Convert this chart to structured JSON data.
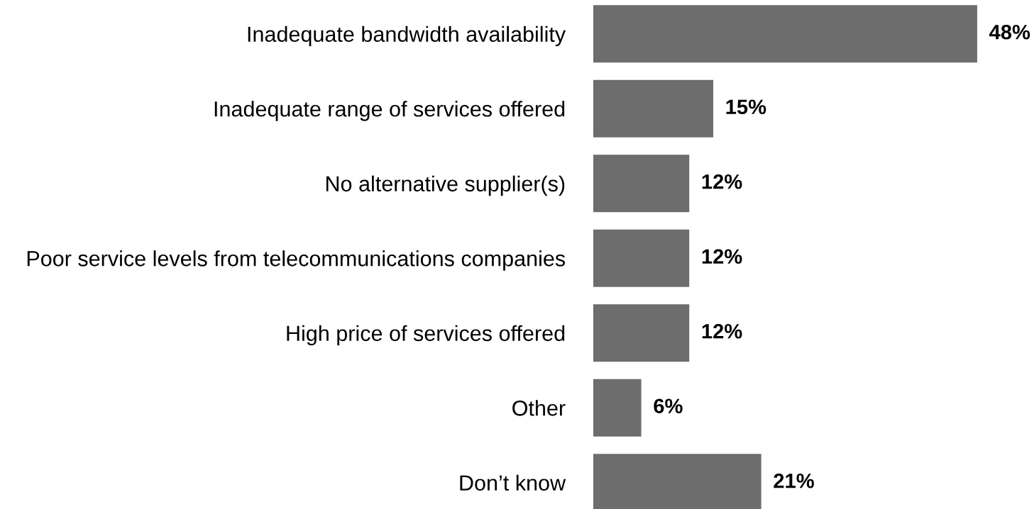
{
  "chart_data": {
    "type": "bar",
    "orientation": "horizontal",
    "categories": [
      "Inadequate bandwidth availability",
      "Inadequate range of services offered",
      "No alternative supplier(s)",
      "Poor service levels from telecommunications companies",
      "High price of services offered",
      "Other",
      "Don’t know"
    ],
    "values": [
      48,
      15,
      12,
      12,
      12,
      6,
      21
    ],
    "value_labels": [
      "48%",
      "15%",
      "12%",
      "12%",
      "12%",
      "6%",
      "21%"
    ],
    "color": "#6d6d6d",
    "grid": false,
    "legend": false
  }
}
